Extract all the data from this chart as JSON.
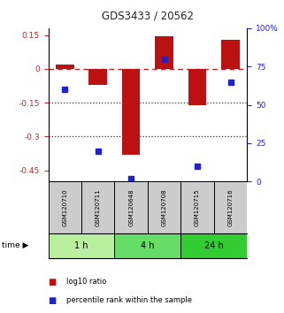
{
  "title": "GDS3433 / 20562",
  "samples": [
    "GSM120710",
    "GSM120711",
    "GSM120648",
    "GSM120708",
    "GSM120715",
    "GSM120716"
  ],
  "time_groups": [
    {
      "label": "1 h",
      "color": "#b8f0a0",
      "samples": [
        0,
        1
      ]
    },
    {
      "label": "4 h",
      "color": "#66dd66",
      "samples": [
        2,
        3
      ]
    },
    {
      "label": "24 h",
      "color": "#33cc33",
      "samples": [
        4,
        5
      ]
    }
  ],
  "log10_ratio": [
    0.02,
    -0.07,
    -0.38,
    0.145,
    -0.16,
    0.13
  ],
  "percentile_rank": [
    60,
    20,
    2,
    80,
    10,
    65
  ],
  "ylim_left": [
    -0.5,
    0.18
  ],
  "ylim_right": [
    0,
    100
  ],
  "left_ticks": [
    0.15,
    0.0,
    -0.15,
    -0.3,
    -0.45
  ],
  "left_tick_labels": [
    "0.15",
    "0",
    "-0.15",
    "-0.3",
    "-0.45"
  ],
  "right_ticks": [
    100,
    75,
    50,
    25,
    0
  ],
  "right_tick_labels": [
    "100%",
    "75",
    "50",
    "25",
    "0"
  ],
  "bar_color": "#bb1111",
  "dot_color": "#2222cc",
  "zero_line_color": "#cc2222",
  "dotted_line_color": "#333333",
  "title_color": "#222222",
  "left_tick_color": "#cc2222",
  "right_tick_color": "#2222cc",
  "bar_width": 0.55,
  "sample_bg_color": "#cccccc",
  "legend_bar_label": "log10 ratio",
  "legend_dot_label": "percentile rank within the sample"
}
